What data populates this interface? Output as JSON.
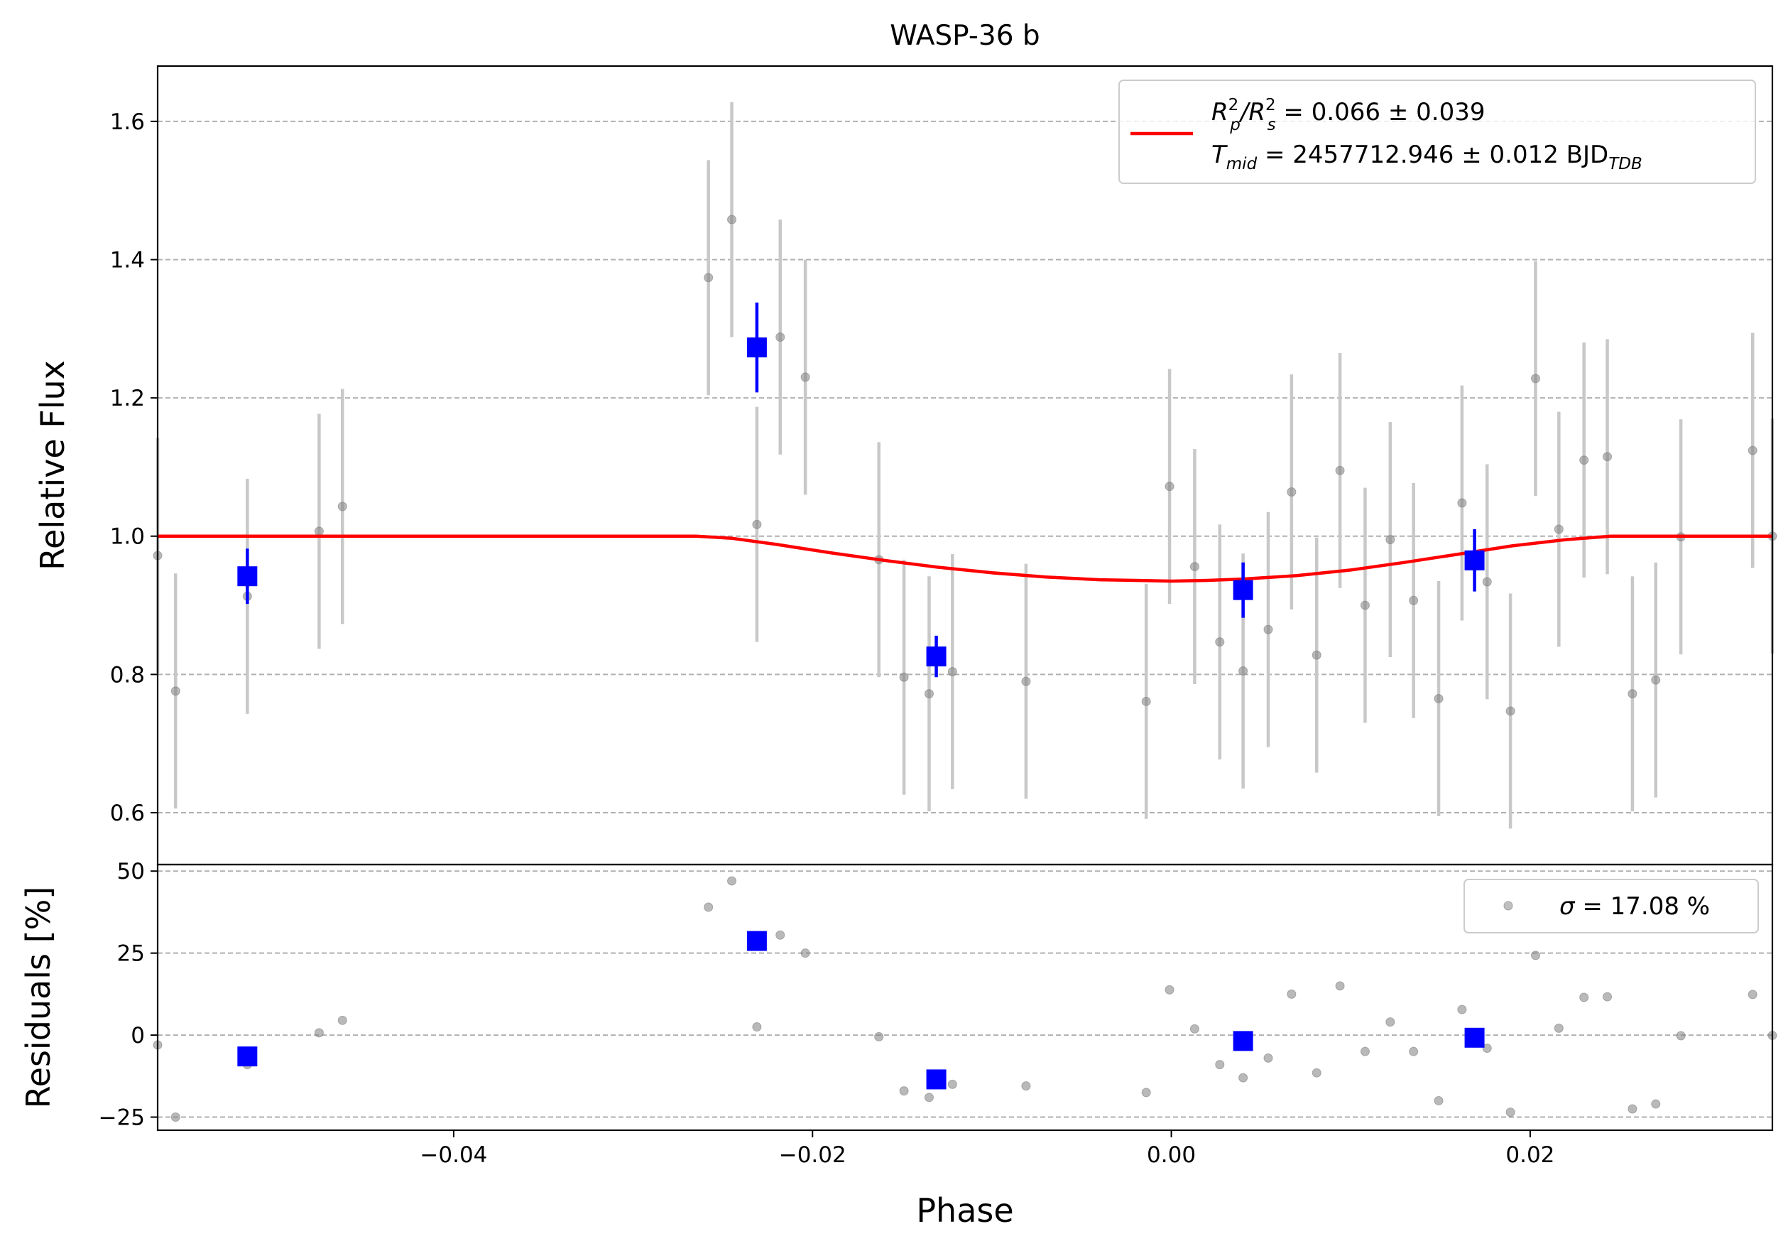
{
  "chart_data": [
    {
      "type": "scatter",
      "panel": "main",
      "title": "WASP-36 b",
      "xlabel": "",
      "ylabel": "Relative Flux",
      "xlim": [
        -0.0565,
        0.0335
      ],
      "ylim": [
        0.525,
        1.68
      ],
      "yticks": [
        0.6,
        0.8,
        1.0,
        1.2,
        1.4,
        1.6
      ],
      "ytick_labels": [
        "0.6",
        "0.8",
        "1.0",
        "1.2",
        "1.4",
        "1.6"
      ],
      "grid": "horizontal dashed",
      "legend_placement": "top-right",
      "legend": [
        {
          "label_html": "R<tspan baseline-shift='super' font-size='70%'>2</tspan>",
          "label": "Rp2/Rs2 = 0.066 ± 0.039"
        },
        {
          "label": "Tmid = 2457712.946 ± 0.012 BJDTDB"
        }
      ],
      "legend_lines": [
        {
          "main": "R",
          "sub1": "p",
          "sup1": "2",
          "mid": "/R",
          "sub2": "s",
          "sup2": "2",
          "rest": " = 0.066 ± 0.039"
        },
        {
          "main": "T",
          "sub1": "mid",
          "rest": " = 2457712.946 ± 0.012 BJD",
          "sub2": "TDB"
        }
      ],
      "model": {
        "color": "#ff0000",
        "x": [
          -0.0565,
          -0.0265,
          -0.0245,
          -0.022,
          -0.019,
          -0.016,
          -0.013,
          -0.01,
          -0.007,
          -0.004,
          -0.002,
          0.0,
          0.002,
          0.004,
          0.007,
          0.01,
          0.013,
          0.016,
          0.019,
          0.022,
          0.0245,
          0.0265,
          0.0335
        ],
        "y": [
          1.0,
          1.0,
          0.997,
          0.988,
          0.976,
          0.965,
          0.955,
          0.947,
          0.941,
          0.937,
          0.936,
          0.935,
          0.936,
          0.938,
          0.943,
          0.951,
          0.962,
          0.974,
          0.986,
          0.995,
          1.0,
          1.0,
          1.0
        ]
      },
      "raw": {
        "color": "#808080",
        "points": [
          {
            "x": -0.0565,
            "y": 0.972,
            "err": 0.17
          },
          {
            "x": -0.0555,
            "y": 0.776,
            "err": 0.17
          },
          {
            "x": -0.0515,
            "y": 0.913,
            "err": 0.17
          },
          {
            "x": -0.0475,
            "y": 1.007,
            "err": 0.17
          },
          {
            "x": -0.0462,
            "y": 1.043,
            "err": 0.17
          },
          {
            "x": -0.0258,
            "y": 1.374,
            "err": 0.17
          },
          {
            "x": -0.0245,
            "y": 1.458,
            "err": 0.17
          },
          {
            "x": -0.0231,
            "y": 1.017,
            "err": 0.17
          },
          {
            "x": -0.0218,
            "y": 1.288,
            "err": 0.17
          },
          {
            "x": -0.0204,
            "y": 1.23,
            "err": 0.17
          },
          {
            "x": -0.0163,
            "y": 0.966,
            "err": 0.17
          },
          {
            "x": -0.0149,
            "y": 0.796,
            "err": 0.17
          },
          {
            "x": -0.0135,
            "y": 0.772,
            "err": 0.17
          },
          {
            "x": -0.0122,
            "y": 0.804,
            "err": 0.17
          },
          {
            "x": -0.0081,
            "y": 0.79,
            "err": 0.17
          },
          {
            "x": -0.0014,
            "y": 0.761,
            "err": 0.17
          },
          {
            "x": -0.0001,
            "y": 1.072,
            "err": 0.17
          },
          {
            "x": 0.0013,
            "y": 0.956,
            "err": 0.17
          },
          {
            "x": 0.0027,
            "y": 0.847,
            "err": 0.17
          },
          {
            "x": 0.004,
            "y": 0.805,
            "err": 0.17
          },
          {
            "x": 0.0054,
            "y": 0.865,
            "err": 0.17
          },
          {
            "x": 0.0067,
            "y": 1.064,
            "err": 0.17
          },
          {
            "x": 0.0081,
            "y": 0.828,
            "err": 0.17
          },
          {
            "x": 0.0094,
            "y": 1.095,
            "err": 0.17
          },
          {
            "x": 0.0108,
            "y": 0.9,
            "err": 0.17
          },
          {
            "x": 0.0122,
            "y": 0.995,
            "err": 0.17
          },
          {
            "x": 0.0135,
            "y": 0.907,
            "err": 0.17
          },
          {
            "x": 0.0149,
            "y": 0.765,
            "err": 0.17
          },
          {
            "x": 0.0162,
            "y": 1.048,
            "err": 0.17
          },
          {
            "x": 0.0176,
            "y": 0.934,
            "err": 0.17
          },
          {
            "x": 0.0189,
            "y": 0.747,
            "err": 0.17
          },
          {
            "x": 0.0203,
            "y": 1.228,
            "err": 0.17
          },
          {
            "x": 0.0216,
            "y": 1.01,
            "err": 0.17
          },
          {
            "x": 0.023,
            "y": 1.11,
            "err": 0.17
          },
          {
            "x": 0.0243,
            "y": 1.115,
            "err": 0.17
          },
          {
            "x": 0.0257,
            "y": 0.772,
            "err": 0.17
          },
          {
            "x": 0.027,
            "y": 0.792,
            "err": 0.17
          },
          {
            "x": 0.0284,
            "y": 0.999,
            "err": 0.17
          },
          {
            "x": 0.0324,
            "y": 1.124,
            "err": 0.17
          },
          {
            "x": 0.0335,
            "y": 1.0,
            "err": 0.17
          }
        ]
      },
      "binned": {
        "color": "#0000ff",
        "points": [
          {
            "x": -0.0515,
            "y": 0.942,
            "err": 0.04
          },
          {
            "x": -0.0231,
            "y": 1.273,
            "err": 0.065
          },
          {
            "x": -0.0131,
            "y": 0.826,
            "err": 0.03
          },
          {
            "x": 0.004,
            "y": 0.922,
            "err": 0.04
          },
          {
            "x": 0.0169,
            "y": 0.965,
            "err": 0.045
          }
        ]
      }
    },
    {
      "type": "scatter",
      "panel": "residuals",
      "xlabel": "Phase",
      "ylabel": "Residuals [%]",
      "xlim": [
        -0.0565,
        0.0335
      ],
      "ylim": [
        -29,
        52
      ],
      "xticks": [
        -0.04,
        -0.02,
        0.0,
        0.02
      ],
      "xtick_labels": [
        "−0.04",
        "−0.02",
        "0.00",
        "0.02"
      ],
      "yticks": [
        -25,
        0,
        25,
        50
      ],
      "ytick_labels": [
        "−25",
        "0",
        "25",
        "50"
      ],
      "grid": "horizontal dashed",
      "legend_placement": "top-right",
      "legend_sigma_symbol": "σ",
      "legend_sigma_text": " = 17.08 %",
      "raw": {
        "color": "#808080",
        "points": [
          {
            "x": -0.0565,
            "y": -3
          },
          {
            "x": -0.0555,
            "y": -25
          },
          {
            "x": -0.0515,
            "y": -9
          },
          {
            "x": -0.0475,
            "y": 0.7
          },
          {
            "x": -0.0462,
            "y": 4.5
          },
          {
            "x": -0.0258,
            "y": 39
          },
          {
            "x": -0.0245,
            "y": 47
          },
          {
            "x": -0.0231,
            "y": 2.5
          },
          {
            "x": -0.0218,
            "y": 30.5
          },
          {
            "x": -0.0204,
            "y": 25
          },
          {
            "x": -0.0163,
            "y": -0.5
          },
          {
            "x": -0.0149,
            "y": -17
          },
          {
            "x": -0.0135,
            "y": -19
          },
          {
            "x": -0.0122,
            "y": -15
          },
          {
            "x": -0.0081,
            "y": -15.5
          },
          {
            "x": -0.0014,
            "y": -17.5
          },
          {
            "x": -0.0001,
            "y": 13.8
          },
          {
            "x": 0.0013,
            "y": 1.9
          },
          {
            "x": 0.0027,
            "y": -9
          },
          {
            "x": 0.004,
            "y": -13
          },
          {
            "x": 0.0054,
            "y": -7
          },
          {
            "x": 0.0067,
            "y": 12.5
          },
          {
            "x": 0.0081,
            "y": -11.5
          },
          {
            "x": 0.0094,
            "y": 15
          },
          {
            "x": 0.0108,
            "y": -5
          },
          {
            "x": 0.0122,
            "y": 4
          },
          {
            "x": 0.0135,
            "y": -5
          },
          {
            "x": 0.0149,
            "y": -20
          },
          {
            "x": 0.0162,
            "y": 7.8
          },
          {
            "x": 0.0176,
            "y": -4
          },
          {
            "x": 0.0189,
            "y": -23.5
          },
          {
            "x": 0.0203,
            "y": 24.3
          },
          {
            "x": 0.0216,
            "y": 2.1
          },
          {
            "x": 0.023,
            "y": 11.5
          },
          {
            "x": 0.0243,
            "y": 11.7
          },
          {
            "x": 0.0257,
            "y": -22.5
          },
          {
            "x": 0.027,
            "y": -21
          },
          {
            "x": 0.0284,
            "y": -0.2
          },
          {
            "x": 0.0324,
            "y": 12.4
          },
          {
            "x": 0.0335,
            "y": -0.1
          }
        ]
      },
      "binned": {
        "color": "#0000ff",
        "points": [
          {
            "x": -0.0515,
            "y": -6.5
          },
          {
            "x": -0.0231,
            "y": 28.7
          },
          {
            "x": -0.0131,
            "y": -13.5
          },
          {
            "x": 0.004,
            "y": -1.8
          },
          {
            "x": 0.0169,
            "y": -0.8
          }
        ]
      }
    }
  ]
}
